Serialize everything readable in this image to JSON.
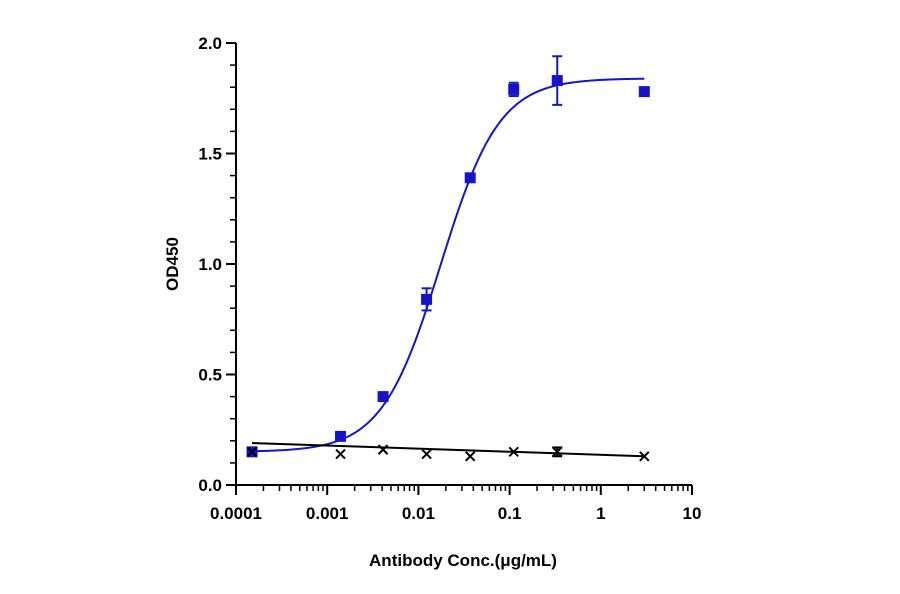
{
  "chart_data": {
    "type": "scatter",
    "title": "",
    "xlabel": "Antibody Conc.(μg/mL)",
    "ylabel": "OD450",
    "xscale": "log",
    "xlim": [
      0.0001,
      10
    ],
    "ylim": [
      0,
      2.0
    ],
    "x_ticks": [
      {
        "value": 0.0001,
        "label": "0.0001"
      },
      {
        "value": 0.001,
        "label": "0.001"
      },
      {
        "value": 0.01,
        "label": "0.01"
      },
      {
        "value": 0.1,
        "label": "0.1"
      },
      {
        "value": 1,
        "label": "1"
      },
      {
        "value": 10,
        "label": "10"
      }
    ],
    "y_ticks": [
      {
        "value": 0.0,
        "label": "0.0"
      },
      {
        "value": 0.5,
        "label": "0.5"
      },
      {
        "value": 1.0,
        "label": "1.0"
      },
      {
        "value": 1.5,
        "label": "1.5"
      },
      {
        "value": 2.0,
        "label": "2.0"
      }
    ],
    "grid": false,
    "legend": "none",
    "series": [
      {
        "color": "#1515c8",
        "marker": "square",
        "fit": "4PL",
        "fit_params": {
          "bottom": 0.15,
          "top": 1.84,
          "ec50": 0.0175,
          "hill": 1.35
        },
        "points": [
          {
            "x": 0.00015,
            "y": 0.15,
            "err": 0.01
          },
          {
            "x": 0.0014,
            "y": 0.22,
            "err": 0.01
          },
          {
            "x": 0.0041,
            "y": 0.4,
            "err": 0.01
          },
          {
            "x": 0.0123,
            "y": 0.84,
            "err": 0.05
          },
          {
            "x": 0.037,
            "y": 1.39,
            "err": 0.01
          },
          {
            "x": 0.111,
            "y": 1.79,
            "err": 0.03
          },
          {
            "x": 0.333,
            "y": 1.83,
            "err": 0.11
          },
          {
            "x": 3.0,
            "y": 1.78,
            "err": 0.01
          }
        ]
      },
      {
        "color": "#000000",
        "marker": "x",
        "fit": "line",
        "fit_line": [
          {
            "x": 0.00015,
            "y": 0.19
          },
          {
            "x": 3.0,
            "y": 0.13
          }
        ],
        "points": [
          {
            "x": 0.00015,
            "y": 0.15,
            "err": 0.0
          },
          {
            "x": 0.0014,
            "y": 0.14,
            "err": 0.0
          },
          {
            "x": 0.0041,
            "y": 0.16,
            "err": 0.0
          },
          {
            "x": 0.0123,
            "y": 0.14,
            "err": 0.0
          },
          {
            "x": 0.037,
            "y": 0.13,
            "err": 0.0
          },
          {
            "x": 0.111,
            "y": 0.15,
            "err": 0.0
          },
          {
            "x": 0.333,
            "y": 0.15,
            "err": 0.02
          },
          {
            "x": 3.0,
            "y": 0.13,
            "err": 0.0
          }
        ]
      }
    ]
  }
}
